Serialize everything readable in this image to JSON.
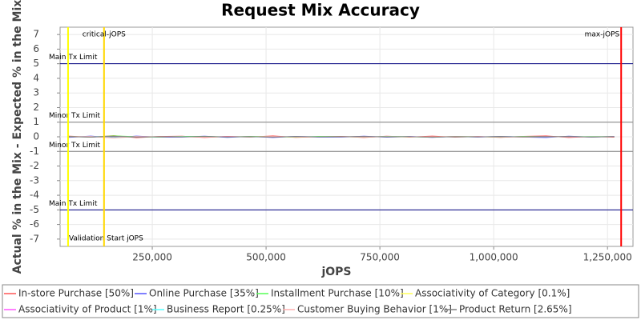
{
  "chart_data": {
    "type": "line",
    "title": "Request Mix Accuracy",
    "x_label": "jOPS",
    "y_label": "Actual % in the Mix - Expected % in the Mix",
    "xlim": [
      47500,
      1306000
    ],
    "ylim": [
      -7.5,
      7.5
    ],
    "xticks": [
      {
        "value": 250000,
        "label": "250,000"
      },
      {
        "value": 500000,
        "label": "500,000"
      },
      {
        "value": 750000,
        "label": "750,000"
      },
      {
        "value": 1000000,
        "label": "1,000,000"
      },
      {
        "value": 1250000,
        "label": "1,250,000"
      }
    ],
    "yticks": [
      7,
      6,
      5,
      4,
      3,
      2,
      1,
      0,
      -1,
      -2,
      -3,
      -4,
      -5,
      -6,
      -7
    ],
    "grid": true,
    "x": [
      65000,
      115000,
      165000,
      215000,
      265000,
      315000,
      365000,
      415000,
      465000,
      515000,
      565000,
      615000,
      665000,
      715000,
      765000,
      815000,
      865000,
      915000,
      965000,
      1015000,
      1065000,
      1115000,
      1165000,
      1215000,
      1265000
    ],
    "series": [
      {
        "name": "In-store Purchase [50%]",
        "color": "#ff5555",
        "values": [
          0.05,
          -0.03,
          0.08,
          -0.06,
          0.02,
          0.04,
          -0.05,
          0.03,
          -0.02,
          0.06,
          -0.04,
          0.01,
          0.03,
          -0.05,
          0.04,
          -0.02,
          0.05,
          -0.03,
          0.02,
          -0.04,
          0.03,
          0.06,
          -0.05,
          0.02,
          -0.03
        ]
      },
      {
        "name": "Online Purchase [35%]",
        "color": "#5555ff",
        "values": [
          -0.04,
          0.05,
          -0.07,
          0.05,
          -0.03,
          -0.02,
          0.04,
          -0.04,
          0.03,
          -0.05,
          0.03,
          -0.02,
          -0.03,
          0.04,
          -0.03,
          0.02,
          -0.04,
          0.03,
          -0.02,
          0.03,
          -0.02,
          -0.05,
          0.04,
          -0.02,
          0.03
        ]
      },
      {
        "name": "Installment Purchase [10%]",
        "color": "#55ff55",
        "values": [
          0.02,
          -0.02,
          0.06,
          0.01,
          -0.02,
          0.03,
          0.02,
          -0.01,
          0.02,
          0.01,
          -0.02,
          0.03,
          0.01,
          -0.02,
          0.02,
          0.01,
          -0.03,
          0.02,
          0.01,
          -0.02,
          0.02,
          0.01,
          -0.01,
          0.02,
          0.01
        ]
      },
      {
        "name": "Associativity of Category [0.1%]",
        "color": "#ffff55",
        "values": [
          0.0,
          0.01,
          -0.01,
          0.0,
          0.01,
          0.0,
          -0.01,
          0.0,
          0.01,
          0.0,
          -0.01,
          0.0,
          0.0,
          0.01,
          0.0,
          -0.01,
          0.0,
          0.01,
          0.0,
          0.0,
          -0.01,
          0.0,
          0.01,
          0.0,
          0.0
        ]
      },
      {
        "name": "Associativity of Product [1%]",
        "color": "#ff55ff",
        "values": [
          0.01,
          -0.01,
          0.02,
          -0.01,
          0.01,
          0.0,
          -0.01,
          0.01,
          0.0,
          -0.01,
          0.01,
          0.0,
          -0.01,
          0.01,
          0.0,
          0.01,
          -0.01,
          0.0,
          0.01,
          -0.01,
          0.0,
          0.01,
          -0.01,
          0.0,
          0.01
        ]
      },
      {
        "name": "Business Report [0.25%]",
        "color": "#55ffff",
        "values": [
          0.0,
          0.01,
          0.0,
          -0.01,
          0.0,
          0.01,
          0.0,
          0.0,
          -0.01,
          0.0,
          0.01,
          0.0,
          -0.01,
          0.0,
          0.01,
          0.0,
          0.0,
          -0.01,
          0.0,
          0.01,
          0.0,
          -0.01,
          0.0,
          0.01,
          0.0
        ]
      },
      {
        "name": "Customer Buying Behavior [1%]",
        "color": "#ffafaf",
        "values": [
          -0.01,
          0.02,
          -0.08,
          0.02,
          -0.01,
          0.01,
          -0.02,
          0.01,
          -0.01,
          0.02,
          -0.01,
          0.0,
          0.01,
          -0.02,
          0.01,
          0.0,
          -0.01,
          0.02,
          -0.01,
          0.01,
          -0.02,
          0.01,
          0.0,
          -0.01,
          0.01
        ]
      },
      {
        "name": "Product Return [2.65%]",
        "color": "#808080",
        "values": [
          0.01,
          -0.02,
          0.03,
          -0.02,
          0.01,
          -0.01,
          0.02,
          -0.01,
          0.01,
          -0.02,
          0.02,
          -0.01,
          0.01,
          0.02,
          -0.01,
          0.01,
          -0.02,
          0.01,
          -0.01,
          0.02,
          -0.01,
          0.01,
          0.02,
          -0.02,
          0.01
        ]
      }
    ],
    "markers": [
      {
        "label": "Validation Start jOPS",
        "value": 65000,
        "color": "#ffff00"
      },
      {
        "label": "critical-jOPS",
        "value": 144000,
        "color": "#ffd700"
      },
      {
        "label": "max-jOPS",
        "value": 1280000,
        "color": "#ff0000"
      }
    ],
    "limits": [
      {
        "label": "Main Tx Limit",
        "value": 5,
        "color": "#000080"
      },
      {
        "label": "Minor Tx Limit",
        "value": 1,
        "color": "#808080"
      },
      {
        "label": "Minor Tx Limit",
        "value": -1,
        "color": "#808080"
      },
      {
        "label": "Main Tx Limit",
        "value": -5,
        "color": "#000080"
      }
    ]
  }
}
